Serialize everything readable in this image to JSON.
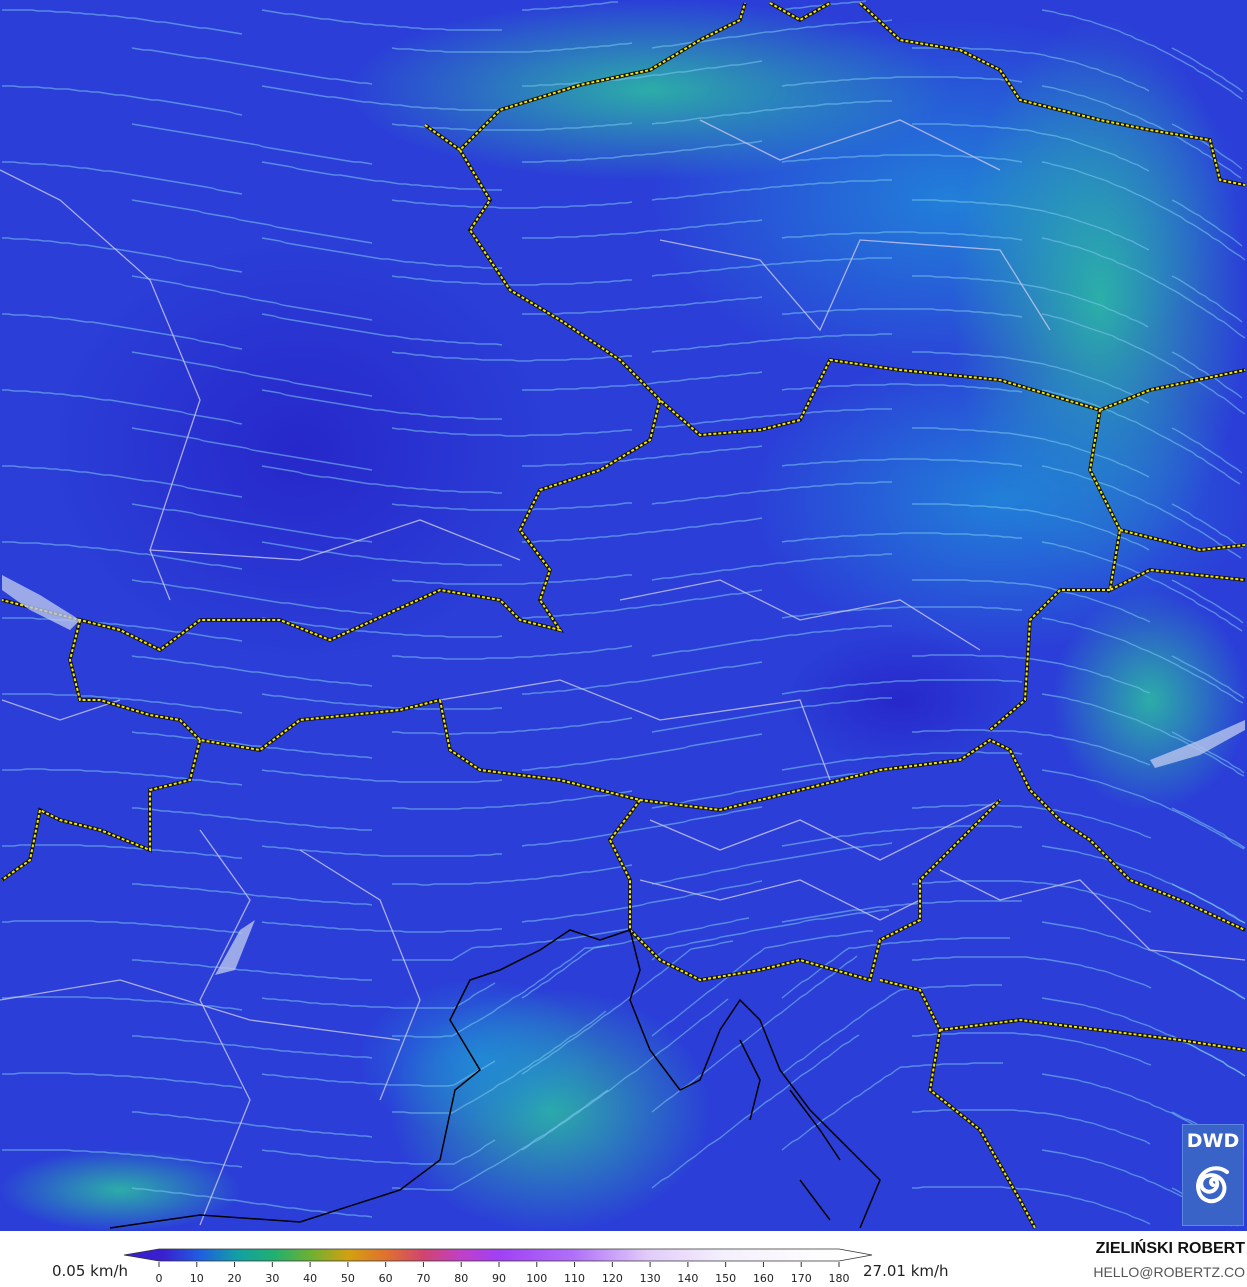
{
  "map": {
    "parameter": "wind speed",
    "region": "Central Europe / Alps",
    "colors": {
      "low_wind": "#2a3bd6",
      "moderate_wind": "#1fa6a8",
      "border": "#f2e600",
      "admin_lines": "#c8c8e8",
      "coastline": "#000000"
    }
  },
  "colorbar": {
    "min_label": "0.05 km/h",
    "max_label": "27.01 km/h",
    "ticks": [
      "0",
      "10",
      "20",
      "30",
      "40",
      "50",
      "60",
      "70",
      "80",
      "90",
      "100",
      "110",
      "120",
      "130",
      "140",
      "150",
      "160",
      "170",
      "180"
    ],
    "stops": [
      {
        "v": 0,
        "c": "#3a1fcf"
      },
      {
        "v": 10,
        "c": "#1f5fe0"
      },
      {
        "v": 20,
        "c": "#12a0a4"
      },
      {
        "v": 30,
        "c": "#22b070"
      },
      {
        "v": 40,
        "c": "#70b030"
      },
      {
        "v": 50,
        "c": "#d4a010"
      },
      {
        "v": 60,
        "c": "#e07030"
      },
      {
        "v": 70,
        "c": "#d04470"
      },
      {
        "v": 80,
        "c": "#c040c8"
      },
      {
        "v": 90,
        "c": "#a040f4"
      },
      {
        "v": 110,
        "c": "#b070f8"
      },
      {
        "v": 130,
        "c": "#e2ccfa"
      },
      {
        "v": 150,
        "c": "#f4f0fc"
      },
      {
        "v": 180,
        "c": "#ffffff"
      }
    ]
  },
  "credit": {
    "name": "ZIELIŃSKI ROBERT",
    "email": "HELLO@ROBERTZ.CO"
  },
  "logo": {
    "text": "DWD",
    "icon": "spiral-icon"
  }
}
